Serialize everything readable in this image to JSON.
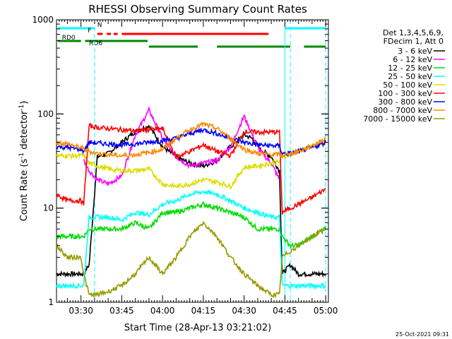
{
  "chart_data": {
    "type": "line",
    "title": "RHESSI Observing Summary Count Rates",
    "xlabel": "Start Time (28-Apr-13 03:21:02)",
    "ylabel": "Count Rate (s⁻¹ detector⁻¹)",
    "ylabel_plain": "Count Rate (s",
    "ylabel_sup1": "-1",
    "ylabel_mid": " detector",
    "ylabel_sup2": "-1",
    "ylabel_end": ")",
    "yscale": "log",
    "ylim": [
      1,
      1000
    ],
    "xlim_minutes": [
      21.0,
      121.0
    ],
    "x_ticks": [
      {
        "label": "03:30",
        "minute": 30
      },
      {
        "label": "03:45",
        "minute": 45
      },
      {
        "label": "04:00",
        "minute": 60
      },
      {
        "label": "04:15",
        "minute": 75
      },
      {
        "label": "04:30",
        "minute": 90
      },
      {
        "label": "04:45",
        "minute": 105
      },
      {
        "label": "05:00",
        "minute": 120
      }
    ],
    "y_ticks": [
      {
        "label": "1",
        "value": 1
      },
      {
        "label": "10",
        "value": 10
      },
      {
        "label": "100",
        "value": 100
      },
      {
        "label": "1000",
        "value": 1000
      }
    ],
    "legend_header": [
      "Det 1,3,4,5,6,9,",
      "FDecim 1, Att 0"
    ],
    "legend_placement": "right",
    "series": [
      {
        "name": "3 - 6 keV",
        "color": "#000000",
        "x": [
          21,
          31,
          33,
          36,
          40,
          45,
          50,
          55,
          60,
          65,
          70,
          75,
          80,
          85,
          90,
          93,
          96,
          100,
          103,
          104,
          107,
          110,
          115,
          120
        ],
        "y": [
          2,
          2,
          2.5,
          35,
          38,
          50,
          65,
          75,
          45,
          35,
          30,
          28,
          32,
          45,
          60,
          55,
          42,
          35,
          25,
          2,
          2.5,
          2,
          2,
          2
        ]
      },
      {
        "name": "6 - 12 keV",
        "color": "#ff00ff",
        "x": [
          31,
          33,
          36,
          40,
          45,
          50,
          55,
          60,
          65,
          70,
          75,
          80,
          85,
          90,
          93,
          96,
          100,
          103
        ],
        "y": [
          32,
          25,
          20,
          18,
          22,
          60,
          110,
          55,
          35,
          28,
          30,
          32,
          45,
          95,
          60,
          40,
          30,
          20
        ]
      },
      {
        "name": "12 - 25 keV",
        "color": "#00dd00",
        "x": [
          21,
          31,
          33,
          36,
          40,
          45,
          50,
          55,
          60,
          65,
          70,
          75,
          80,
          85,
          90,
          95,
          100,
          103,
          104,
          107,
          110,
          115,
          120
        ],
        "y": [
          5,
          5,
          6,
          6,
          6,
          6,
          7,
          6,
          9,
          9,
          10,
          11,
          10,
          9,
          8,
          6,
          6,
          6,
          5,
          4,
          4,
          5,
          6
        ]
      },
      {
        "name": "25 - 50 keV",
        "color": "#00ffff",
        "x": [
          21,
          31,
          33,
          36,
          40,
          45,
          50,
          55,
          60,
          65,
          70,
          75,
          80,
          85,
          90,
          95,
          100,
          103,
          104,
          107,
          110,
          115,
          120
        ],
        "y": [
          1.5,
          1.5,
          8,
          8,
          8,
          7.5,
          9,
          8.5,
          11,
          12,
          14,
          15,
          14,
          12,
          10,
          9,
          8,
          8,
          1.5,
          1.5,
          1.5,
          1.5,
          1.5
        ]
      },
      {
        "name": "50 - 100 keV",
        "color": "#dddd00",
        "x": [
          21,
          31,
          33,
          36,
          40,
          45,
          50,
          55,
          60,
          65,
          70,
          75,
          80,
          85,
          90,
          95,
          100,
          103,
          104,
          107,
          110,
          115,
          120
        ],
        "y": [
          36,
          36,
          30,
          28,
          26,
          25,
          25,
          26,
          18,
          17,
          18,
          20,
          19,
          17,
          27,
          28,
          30,
          31,
          35,
          38,
          40,
          45,
          50
        ]
      },
      {
        "name": "100 - 300 keV",
        "color": "#ff0000",
        "x": [
          21,
          25,
          30,
          31,
          33,
          36,
          40,
          45,
          50,
          55,
          60,
          65,
          70,
          75,
          80,
          85,
          90,
          95,
          100,
          103,
          104,
          107,
          110,
          115,
          120
        ],
        "y": [
          14,
          12,
          12,
          11,
          75,
          72,
          70,
          68,
          66,
          68,
          70,
          35,
          40,
          47,
          40,
          36,
          65,
          64,
          64,
          65,
          9,
          10,
          11,
          13,
          16
        ]
      },
      {
        "name": "300 - 800 keV",
        "color": "#0000ff",
        "x": [
          21,
          25,
          30,
          31,
          33,
          36,
          40,
          45,
          50,
          55,
          60,
          65,
          70,
          75,
          80,
          85,
          90,
          95,
          100,
          103,
          104,
          107,
          110,
          115,
          120
        ],
        "y": [
          45,
          44,
          42,
          40,
          50,
          49,
          48,
          47,
          48,
          50,
          52,
          55,
          62,
          68,
          62,
          55,
          50,
          47,
          46,
          46,
          38,
          38,
          40,
          44,
          50
        ]
      },
      {
        "name": "800 - 7000 keV",
        "color": "#ff8800",
        "x": [
          21,
          25,
          30,
          31,
          33,
          36,
          40,
          45,
          50,
          55,
          60,
          65,
          70,
          75,
          80,
          85,
          90,
          95,
          100,
          103,
          104,
          107,
          110,
          115,
          120
        ],
        "y": [
          50,
          48,
          44,
          42,
          40,
          38,
          37,
          36,
          37,
          39,
          42,
          55,
          68,
          78,
          70,
          55,
          42,
          38,
          37,
          37,
          36,
          38,
          40,
          46,
          55
        ]
      },
      {
        "name": "7000 - 15000 keV",
        "color": "#999900",
        "x": [
          21,
          25,
          30,
          31,
          33,
          36,
          40,
          45,
          50,
          55,
          60,
          65,
          70,
          75,
          80,
          85,
          90,
          95,
          100,
          103,
          104,
          107,
          110,
          115,
          120
        ],
        "y": [
          4,
          3,
          3,
          2,
          1.2,
          1.2,
          1.3,
          1.5,
          2,
          3,
          2,
          3,
          5,
          7,
          5,
          3,
          2,
          1.5,
          1.2,
          1.2,
          3,
          3.5,
          4,
          5,
          6
        ]
      }
    ],
    "state_bars": [
      {
        "label": "N",
        "color": "#00ffff",
        "segments": [
          [
            21.5,
            35
          ],
          [
            105,
            120
          ]
        ]
      },
      {
        "label": "F",
        "color": "#ff0000",
        "segments": [
          [
            36,
            38
          ],
          [
            39.5,
            41
          ],
          [
            42,
            43.5
          ],
          [
            45,
            99
          ]
        ]
      },
      {
        "label": "RD0",
        "color": "#008800",
        "segments": [
          [
            21.5,
            30
          ],
          [
            31.5,
            54.5
          ]
        ]
      },
      {
        "label": "RD6",
        "color": "#008800",
        "segments": [
          [
            55,
            73
          ],
          [
            80,
            94
          ],
          [
            94,
            107
          ],
          [
            112,
            120
          ]
        ]
      }
    ],
    "vertical_markers": [
      {
        "minute": 35,
        "style": "dashed"
      },
      {
        "minute": 105,
        "style": "solid"
      },
      {
        "minute": 107,
        "style": "dashed"
      },
      {
        "minute": 120,
        "style": "dashed"
      }
    ]
  },
  "footer": {
    "timestamp": "25-Oct-2021 09:31"
  }
}
